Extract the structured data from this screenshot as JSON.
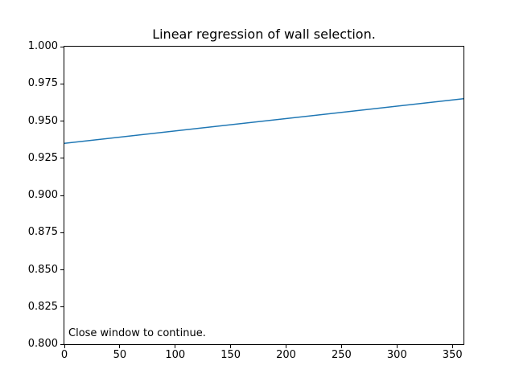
{
  "window": {
    "background": "#ffffff"
  },
  "chart_data": {
    "type": "line",
    "title": "Linear regression of wall selection.",
    "xlabel": "",
    "ylabel": "",
    "xlim": [
      0,
      360
    ],
    "ylim": [
      0.8,
      1.0
    ],
    "grid": false,
    "legend": null,
    "series": [
      {
        "name": "regression-line",
        "x": [
          0,
          360
        ],
        "y": [
          0.935,
          0.965
        ],
        "color": "#1f77b4",
        "linewidth": 1.5
      }
    ],
    "xticks": [
      {
        "value": 0,
        "label": "0"
      },
      {
        "value": 50,
        "label": "50"
      },
      {
        "value": 100,
        "label": "100"
      },
      {
        "value": 150,
        "label": "150"
      },
      {
        "value": 200,
        "label": "200"
      },
      {
        "value": 250,
        "label": "250"
      },
      {
        "value": 300,
        "label": "300"
      },
      {
        "value": 350,
        "label": "350"
      }
    ],
    "yticks": [
      {
        "value": 0.8,
        "label": "0.800"
      },
      {
        "value": 0.825,
        "label": "0.825"
      },
      {
        "value": 0.85,
        "label": "0.850"
      },
      {
        "value": 0.875,
        "label": "0.875"
      },
      {
        "value": 0.9,
        "label": "0.900"
      },
      {
        "value": 0.925,
        "label": "0.925"
      },
      {
        "value": 0.95,
        "label": "0.950"
      },
      {
        "value": 0.975,
        "label": "0.975"
      },
      {
        "value": 1.0,
        "label": "1.000"
      }
    ],
    "annotation": {
      "text": "Close window to continue.",
      "position": "bottom-left-inside"
    },
    "axis_color": "#000000",
    "background_color": "#ffffff"
  }
}
